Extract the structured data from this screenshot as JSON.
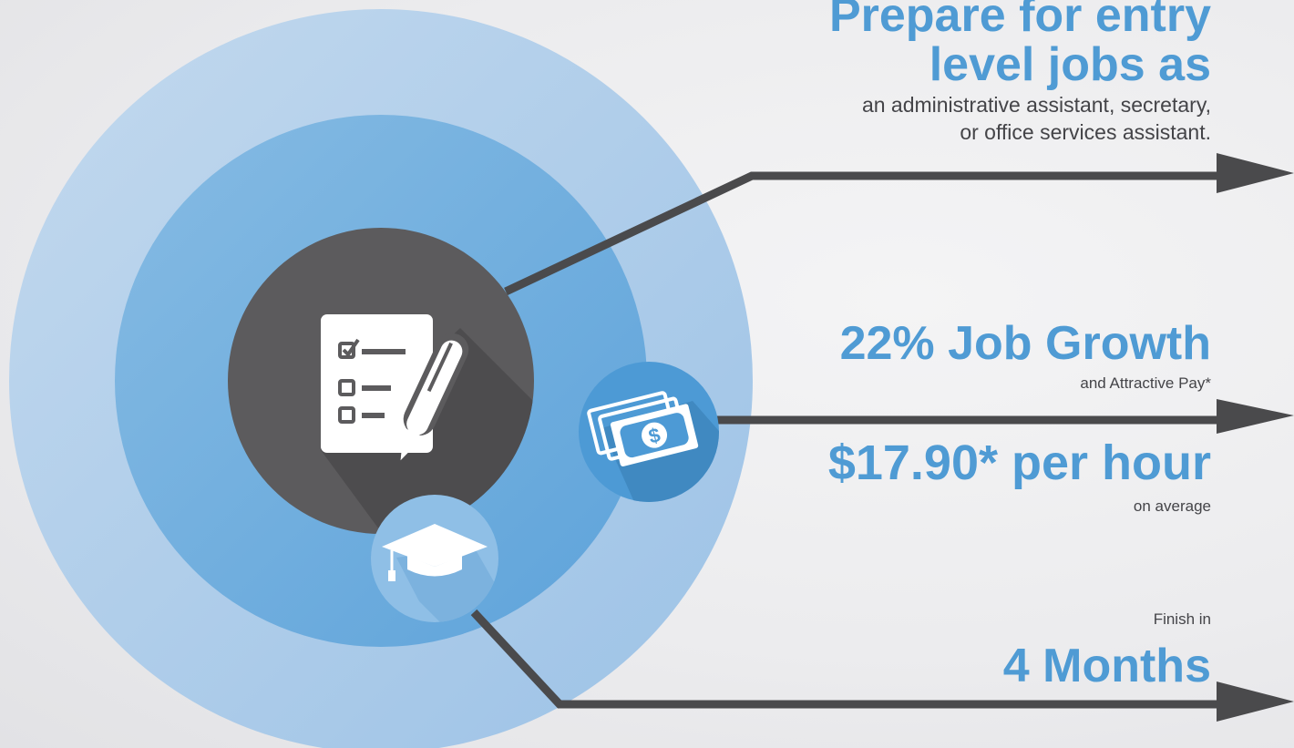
{
  "colors": {
    "accent_blue": "#4f9bd4",
    "outer_ring": "#a9c9e8",
    "middle_ring": "#6fade0",
    "dark_circle": "#5c5b5d",
    "arrow": "#4a4a4c",
    "text_dark": "#444448"
  },
  "icons": {
    "center": "checklist-pen-icon",
    "money": "cash-bills-icon",
    "cap": "graduation-cap-icon",
    "money_symbol": "$"
  },
  "entry": {
    "title_line1": "Prepare for entry",
    "title_line2": "level jobs as",
    "desc_line1": "an administrative assistant, secretary,",
    "desc_line2": "or office services assistant."
  },
  "growth": {
    "title": "22% Job Growth",
    "subtitle": "and Attractive Pay*"
  },
  "pay": {
    "amount": "$17.90* per hour",
    "subtitle": "on average"
  },
  "duration": {
    "label": "Finish in",
    "value": "4 Months"
  }
}
